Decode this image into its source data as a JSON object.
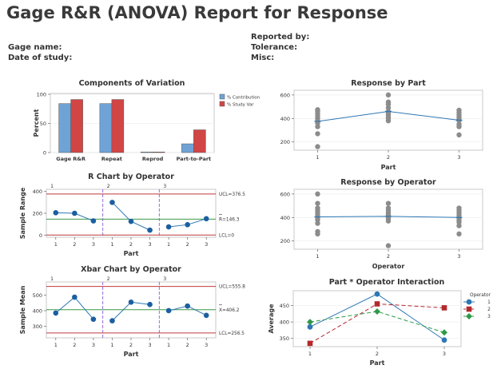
{
  "report": {
    "title": "Gage R&R (ANOVA) Report for Response",
    "fields_left": [
      "Gage name:",
      "Date of study:"
    ],
    "fields_right": [
      "Reported by:",
      "Tolerance:",
      "Misc:"
    ]
  },
  "colors": {
    "contribution": "#6fa3d6",
    "study_var": "#d24545",
    "line_blue": "#2d77b5",
    "marker_blue": "#1b5fa0",
    "control_red": "#c0393b",
    "center_green": "#3c9a48",
    "divider_purple": "#8a5cd8",
    "point_gray": "#8c8c8c",
    "op2_red": "#b5282d",
    "op3_green": "#2e9a4a"
  },
  "chart_data": [
    {
      "id": "components",
      "type": "bar",
      "title": "Components of Variation",
      "ylabel": "Percent",
      "categories": [
        "Gage R&R",
        "Repeat",
        "Reprod",
        "Part-to-Part"
      ],
      "series": [
        {
          "name": "% Contribution",
          "values": [
            84,
            84,
            1,
            15
          ]
        },
        {
          "name": "% Study Var",
          "values": [
            91,
            91,
            1,
            39
          ]
        }
      ],
      "ylim": [
        0,
        100
      ],
      "yticks": [
        0,
        50,
        100
      ],
      "legend": "right"
    },
    {
      "id": "response_by_part",
      "type": "scatter",
      "title": "Response by Part",
      "xlabel": "Part",
      "categories": [
        "1",
        "2",
        "3"
      ],
      "points": [
        [
          160,
          270,
          330,
          360,
          380,
          400,
          420,
          440,
          460,
          475
        ],
        [
          380,
          400,
          410,
          430,
          440,
          450,
          460,
          490,
          520,
          540,
          600
        ],
        [
          260,
          330,
          350,
          380,
          390,
          410,
          430,
          450,
          470
        ]
      ],
      "means": [
        375,
        460,
        385
      ],
      "ylim": [
        130,
        640
      ],
      "yticks": [
        200,
        400,
        600
      ]
    },
    {
      "id": "r_chart",
      "type": "line",
      "title": "R Chart by Operator",
      "xlabel": "Part",
      "ylabel": "Sample Range",
      "operators": [
        "1",
        "2",
        "3"
      ],
      "categories": [
        "1",
        "2",
        "3",
        "1",
        "2",
        "3",
        "1",
        "2",
        "3"
      ],
      "values": [
        205,
        200,
        130,
        300,
        125,
        45,
        75,
        95,
        150
      ],
      "limits": {
        "UCL": 376.5,
        "center": 146.3,
        "LCL": 0
      },
      "limit_labels": [
        "UCL=376.5",
        "R=146.3",
        "LCL=0"
      ],
      "ylim": [
        -20,
        420
      ],
      "yticks": [
        0,
        200,
        400
      ]
    },
    {
      "id": "response_by_operator",
      "type": "scatter",
      "title": "Response by Operator",
      "xlabel": "Operator",
      "categories": [
        "1",
        "2",
        "3"
      ],
      "points": [
        [
          260,
          280,
          350,
          380,
          400,
          420,
          440,
          460,
          480,
          520,
          600
        ],
        [
          160,
          370,
          390,
          400,
          420,
          430,
          440,
          460,
          480,
          520
        ],
        [
          260,
          330,
          360,
          380,
          400,
          420,
          440,
          460,
          480
        ]
      ],
      "means": [
        405,
        410,
        400
      ],
      "ylim": [
        130,
        640
      ],
      "yticks": [
        200,
        400,
        600
      ]
    },
    {
      "id": "xbar_chart",
      "type": "line",
      "title": "Xbar Chart by Operator",
      "xlabel": "Part",
      "ylabel": "Sample Mean",
      "operators": [
        "1",
        "2",
        "3"
      ],
      "categories": [
        "1",
        "2",
        "3",
        "1",
        "2",
        "3",
        "1",
        "2",
        "3"
      ],
      "values": [
        385,
        487,
        345,
        335,
        455,
        440,
        400,
        430,
        370
      ],
      "limits": {
        "UCL": 555.8,
        "center": 406.2,
        "LCL": 256.5
      },
      "limit_labels": [
        "UCL=555.8",
        "X=406.2",
        "LCL=256.5"
      ],
      "ylim": [
        225,
        585
      ],
      "yticks": [
        300,
        400,
        500
      ]
    },
    {
      "id": "interaction",
      "type": "line",
      "title": "Part * Operator Interaction",
      "xlabel": "Part",
      "ylabel": "Average",
      "categories": [
        "1",
        "2",
        "3"
      ],
      "legend_title": "Operator",
      "series": [
        {
          "name": "1",
          "values": [
            385,
            485,
            345
          ]
        },
        {
          "name": "2",
          "values": [
            335,
            455,
            443
          ]
        },
        {
          "name": "3",
          "values": [
            400,
            432,
            368
          ]
        }
      ],
      "ylim": [
        325,
        495
      ],
      "yticks": [
        350,
        400,
        450
      ],
      "legend": "right"
    }
  ]
}
